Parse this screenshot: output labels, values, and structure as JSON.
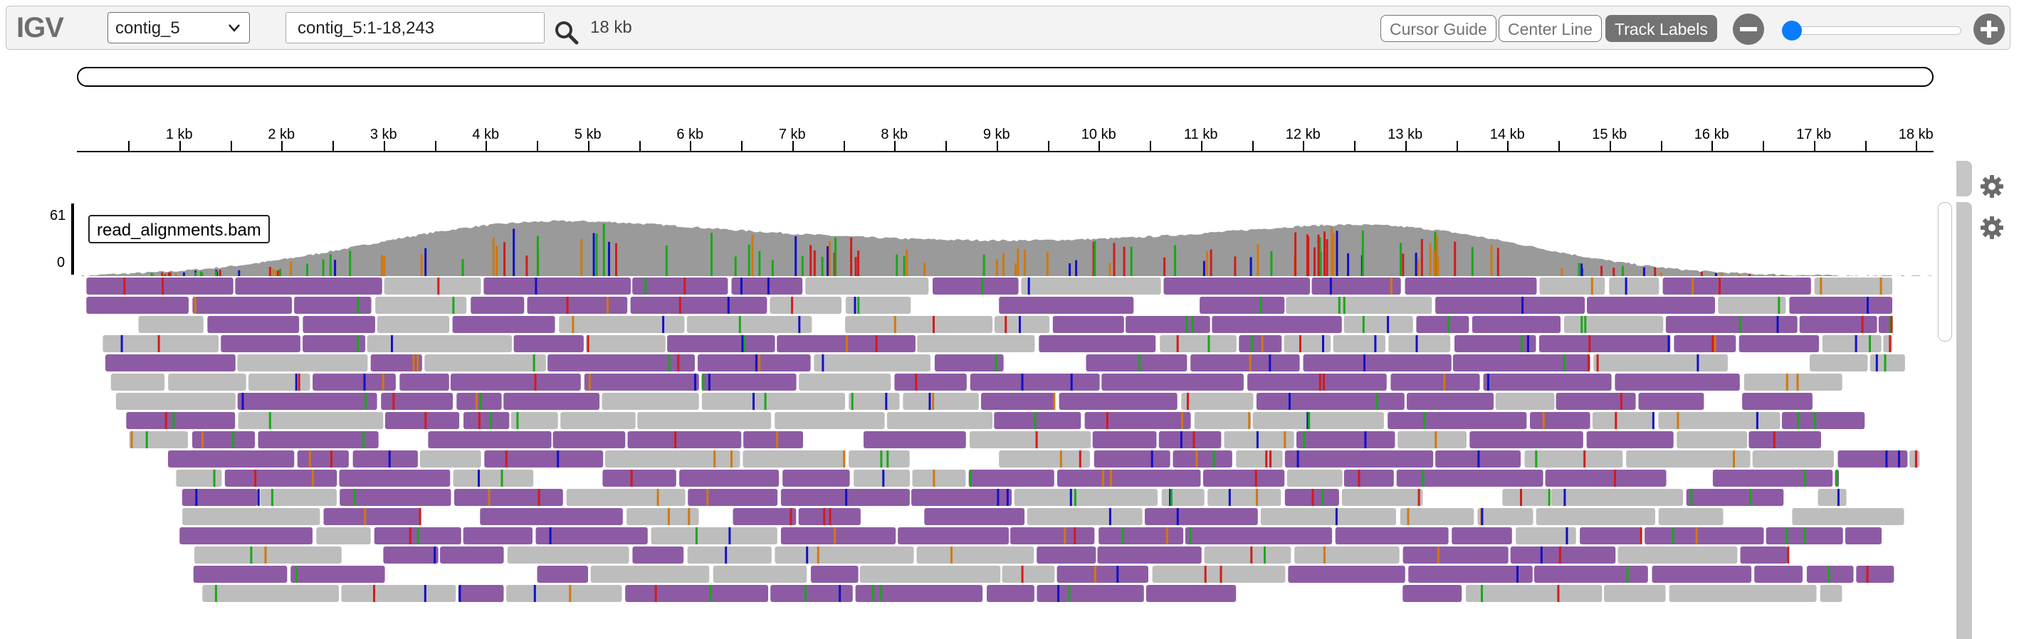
{
  "navbar": {
    "logo": "IGV",
    "chromosome": "contig_5",
    "locus": "contig_5:1-18,243",
    "window_size": "18 kb",
    "buttons": {
      "cursor_guide": "Cursor Guide",
      "center_line": "Center Line",
      "track_labels": "Track Labels"
    },
    "icons": {
      "search": "search-icon",
      "zoom_out": "minus-circle-icon",
      "zoom_in": "plus-circle-icon",
      "dropdown": "chevron-down-icon"
    }
  },
  "ruler": {
    "ticks": [
      "1 kb",
      "2 kb",
      "3 kb",
      "4 kb",
      "5 kb",
      "6 kb",
      "7 kb",
      "8 kb",
      "9 kb",
      "10 kb",
      "11 kb",
      "12 kb",
      "13 kb",
      "14 kb",
      "15 kb",
      "16 kb",
      "17 kb",
      "18 kb"
    ]
  },
  "track": {
    "name": "read_alignments.bam",
    "coverage_max": "61",
    "coverage_min": "0"
  },
  "colors": {
    "coverage": "#9a9a9a",
    "read_purple": "#8d5ba4",
    "read_gray": "#bdbdbd",
    "mismatch_a": "#18a818",
    "mismatch_c": "#1010c8",
    "mismatch_g": "#d1780f",
    "mismatch_t": "#d21b1b",
    "accent": "#0a7cff"
  }
}
